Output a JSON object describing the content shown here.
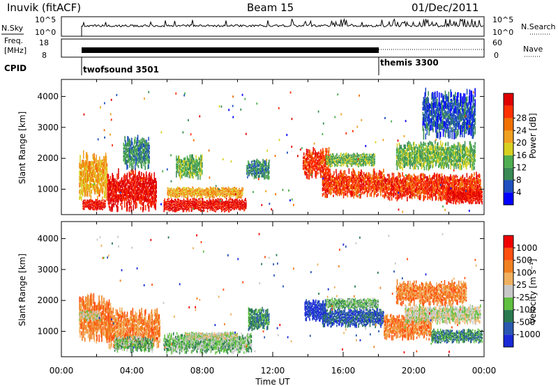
{
  "header": {
    "station": "Inuvik (fitACF)",
    "beam": "Beam 15",
    "date": "01/Dec/2011"
  },
  "strip": {
    "nsky_label": "N.Sky",
    "nsky_ticks": [
      "10^5",
      "10^0"
    ],
    "nsearch_label": "N.Search",
    "freq_label_top": "Freq.",
    "freq_label_bottom": "[MHz]",
    "freq_ticks": [
      "18",
      "8"
    ],
    "nave_label": "Nave",
    "nave_ticks": [
      "60",
      "0"
    ],
    "cpid_label": "CPID",
    "cpid_1": "twofsound 3501",
    "cpid_2": "themis 3300"
  },
  "colors": {
    "power": [
      "#0000ff",
      "#1f4fbf",
      "#3a8a55",
      "#4fae4f",
      "#d8d020",
      "#f0a020",
      "#f07000",
      "#ff3000",
      "#e00000"
    ],
    "velocity": [
      "#1a2ad8",
      "#2a58b0",
      "#2a7a50",
      "#60c040",
      "#c8c8c8",
      "#f0b060",
      "#f08020",
      "#ff5010",
      "#f00000"
    ]
  },
  "chart_data": [
    {
      "type": "heatmap",
      "panel": "power",
      "ylabel": "Slant Range [km]",
      "yticks": [
        1000,
        2000,
        3000,
        4000
      ],
      "ylim": [
        180,
        4550
      ],
      "xlim": [
        0,
        24
      ],
      "colorbar_label": "Power [dB]",
      "colorbar_ticks": [
        "4",
        "8",
        "12",
        "16",
        "20",
        "24",
        "28"
      ],
      "blobs": [
        {
          "t0": 1.0,
          "t1": 2.6,
          "r0": 600,
          "r1": 2300,
          "lvl": 5
        },
        {
          "t0": 1.2,
          "t1": 2.5,
          "r0": 300,
          "r1": 700,
          "lvl": 8
        },
        {
          "t0": 2.6,
          "t1": 5.4,
          "r0": 250,
          "r1": 1700,
          "lvl": 8
        },
        {
          "t0": 3.5,
          "t1": 5.0,
          "r0": 1600,
          "r1": 2800,
          "lvl": 2
        },
        {
          "t0": 5.8,
          "t1": 10.5,
          "r0": 250,
          "r1": 750,
          "lvl": 8
        },
        {
          "t0": 6.0,
          "t1": 10.3,
          "r0": 700,
          "r1": 1100,
          "lvl": 5
        },
        {
          "t0": 6.5,
          "t1": 8.0,
          "r0": 1300,
          "r1": 2200,
          "lvl": 3
        },
        {
          "t0": 10.5,
          "t1": 11.8,
          "r0": 1300,
          "r1": 2000,
          "lvl": 2
        },
        {
          "t0": 13.7,
          "t1": 15.2,
          "r0": 1300,
          "r1": 2400,
          "lvl": 7
        },
        {
          "t0": 14.8,
          "t1": 18.3,
          "r0": 700,
          "r1": 1700,
          "lvl": 7
        },
        {
          "t0": 15.0,
          "t1": 17.8,
          "r0": 1700,
          "r1": 2200,
          "lvl": 3
        },
        {
          "t0": 18.3,
          "t1": 23.8,
          "r0": 600,
          "r1": 1600,
          "lvl": 7
        },
        {
          "t0": 21.8,
          "t1": 23.9,
          "r0": 500,
          "r1": 1100,
          "lvl": 8
        },
        {
          "t0": 19.0,
          "t1": 23.5,
          "r0": 1600,
          "r1": 2600,
          "lvl": 3
        },
        {
          "t0": 20.5,
          "t1": 23.5,
          "r0": 2600,
          "r1": 4300,
          "lvl": 1
        }
      ]
    },
    {
      "type": "heatmap",
      "panel": "velocity",
      "xlabel": "Time UT",
      "ylabel": "Slant Range [km]",
      "yticks": [
        1000,
        2000,
        3000,
        4000
      ],
      "ylim": [
        180,
        4550
      ],
      "xlim": [
        0,
        24
      ],
      "xticks": [
        "00:00",
        "04:00",
        "08:00",
        "12:00",
        "16:00",
        "20:00",
        "00:00"
      ],
      "colorbar_label": "Velocity [m s⁻¹]",
      "colorbar_ticks": [
        "-1000",
        "-500",
        "-100",
        "-25",
        "25",
        "100",
        "500",
        "1000"
      ],
      "blobs": [
        {
          "t0": 1.0,
          "t1": 2.8,
          "r0": 600,
          "r1": 2300,
          "lvl": 6
        },
        {
          "t0": 1.0,
          "t1": 2.2,
          "r0": 1300,
          "r1": 1700,
          "lvl": 4
        },
        {
          "t0": 2.6,
          "t1": 5.6,
          "r0": 400,
          "r1": 1800,
          "lvl": 6
        },
        {
          "t0": 3.0,
          "t1": 5.2,
          "r0": 300,
          "r1": 900,
          "lvl": 3
        },
        {
          "t0": 5.8,
          "t1": 10.8,
          "r0": 250,
          "r1": 1000,
          "lvl": 3
        },
        {
          "t0": 7.0,
          "t1": 10.0,
          "r0": 700,
          "r1": 1000,
          "lvl": 4
        },
        {
          "t0": 10.6,
          "t1": 11.8,
          "r0": 1000,
          "r1": 1800,
          "lvl": 2
        },
        {
          "t0": 13.8,
          "t1": 15.0,
          "r0": 1300,
          "r1": 2100,
          "lvl": 0
        },
        {
          "t0": 14.8,
          "t1": 18.3,
          "r0": 1100,
          "r1": 1800,
          "lvl": 1
        },
        {
          "t0": 15.0,
          "t1": 18.0,
          "r0": 1700,
          "r1": 2100,
          "lvl": 3
        },
        {
          "t0": 18.3,
          "t1": 21.0,
          "r0": 700,
          "r1": 1600,
          "lvl": 6
        },
        {
          "t0": 19.5,
          "t1": 23.8,
          "r0": 1200,
          "r1": 1900,
          "lvl": 4
        },
        {
          "t0": 21.0,
          "t1": 23.9,
          "r0": 600,
          "r1": 1100,
          "lvl": 2
        },
        {
          "t0": 19.0,
          "t1": 23.0,
          "r0": 1800,
          "r1": 2700,
          "lvl": 6
        }
      ]
    }
  ]
}
